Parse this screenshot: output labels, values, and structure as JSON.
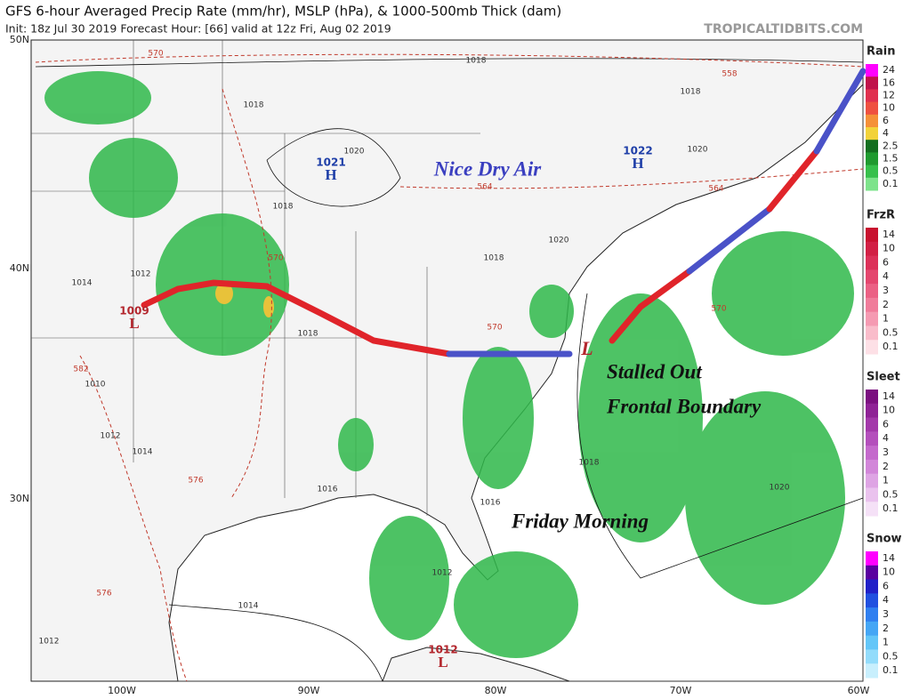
{
  "header": {
    "title": "GFS 6-hour Averaged Precip Rate (mm/hr), MSLP (hPa), & 1000-500mb Thick (dam)",
    "subtitle": "Init: 18z Jul 30 2019   Forecast Hour: [66]   valid at 12z Fri, Aug 02 2019",
    "watermark": "TROPICALTIDBITS.COM"
  },
  "annotations": [
    "Nice Dry Air",
    "Stalled Out",
    "Frontal Boundary",
    "Friday Morning"
  ],
  "latitudes": [
    "50N",
    "40N",
    "30N"
  ],
  "longitudes": [
    "100W",
    "90W",
    "80W",
    "70W",
    "60W"
  ],
  "pressure_centers": [
    {
      "value": "1021",
      "symbol": "H"
    },
    {
      "value": "1022",
      "symbol": "H"
    },
    {
      "value": "1009",
      "symbol": "L"
    },
    {
      "value": "1012",
      "symbol": "L"
    },
    {
      "symbol": "L"
    }
  ],
  "isobar_labels": [
    "1018",
    "1018",
    "1020",
    "1018",
    "1020",
    "1018",
    "1020",
    "1018",
    "1014",
    "1012",
    "1010",
    "1018",
    "1012",
    "1014",
    "1016",
    "1016",
    "1018",
    "1020",
    "1014",
    "1012",
    "1012"
  ],
  "thickness_labels": [
    "570",
    "558",
    "564",
    "564",
    "570",
    "570",
    "570",
    "582",
    "576",
    "576"
  ],
  "legend": [
    {
      "title": "Rain",
      "labels": [
        "24",
        "16",
        "12",
        "10",
        "6",
        "4",
        "2.5",
        "1.5",
        "0.5",
        "0.1"
      ]
    },
    {
      "title": "FrzR",
      "labels": [
        "14",
        "10",
        "6",
        "4",
        "3",
        "2",
        "1",
        "0.5",
        "0.1"
      ]
    },
    {
      "title": "Sleet",
      "labels": [
        "14",
        "10",
        "6",
        "4",
        "3",
        "2",
        "1",
        "0.5",
        "0.1"
      ]
    },
    {
      "title": "Snow",
      "labels": [
        "14",
        "10",
        "6",
        "4",
        "3",
        "2",
        "1",
        "0.5",
        "0.1"
      ]
    }
  ]
}
